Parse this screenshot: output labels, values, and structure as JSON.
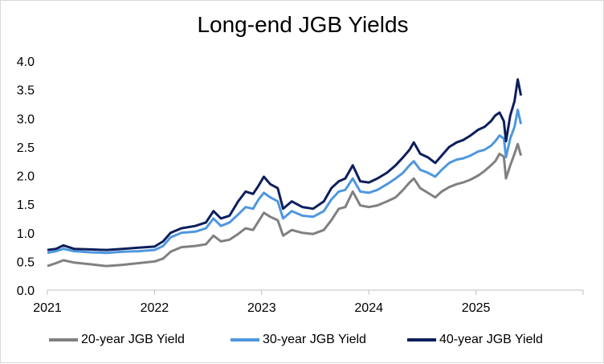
{
  "chart_data": {
    "type": "line",
    "title": "Long-end JGB Yields",
    "xlabel": "",
    "ylabel": "",
    "xlim": [
      2021.0,
      2026.0
    ],
    "ylim": [
      0.0,
      4.0
    ],
    "y_ticks": [
      "0.0",
      "0.5",
      "1.0",
      "1.5",
      "2.0",
      "2.5",
      "3.0",
      "3.5",
      "4.0"
    ],
    "x_ticks": [
      "2021",
      "2022",
      "2023",
      "2024",
      "2025"
    ],
    "legend_position": "bottom",
    "series": [
      {
        "name": "20-year JGB Yield",
        "color": "#808080",
        "points": [
          [
            2021.0,
            0.42
          ],
          [
            2021.08,
            0.47
          ],
          [
            2021.15,
            0.52
          ],
          [
            2021.25,
            0.48
          ],
          [
            2021.4,
            0.45
          ],
          [
            2021.55,
            0.42
          ],
          [
            2021.7,
            0.44
          ],
          [
            2021.85,
            0.47
          ],
          [
            2022.0,
            0.5
          ],
          [
            2022.08,
            0.55
          ],
          [
            2022.15,
            0.67
          ],
          [
            2022.25,
            0.75
          ],
          [
            2022.38,
            0.77
          ],
          [
            2022.48,
            0.8
          ],
          [
            2022.55,
            0.95
          ],
          [
            2022.62,
            0.85
          ],
          [
            2022.7,
            0.88
          ],
          [
            2022.78,
            0.98
          ],
          [
            2022.85,
            1.08
          ],
          [
            2022.92,
            1.05
          ],
          [
            2022.97,
            1.2
          ],
          [
            2023.02,
            1.35
          ],
          [
            2023.08,
            1.28
          ],
          [
            2023.15,
            1.22
          ],
          [
            2023.2,
            0.95
          ],
          [
            2023.28,
            1.05
          ],
          [
            2023.38,
            1.0
          ],
          [
            2023.48,
            0.98
          ],
          [
            2023.58,
            1.05
          ],
          [
            2023.65,
            1.22
          ],
          [
            2023.72,
            1.42
          ],
          [
            2023.78,
            1.45
          ],
          [
            2023.85,
            1.72
          ],
          [
            2023.92,
            1.48
          ],
          [
            2024.0,
            1.45
          ],
          [
            2024.08,
            1.48
          ],
          [
            2024.17,
            1.55
          ],
          [
            2024.25,
            1.62
          ],
          [
            2024.32,
            1.75
          ],
          [
            2024.38,
            1.88
          ],
          [
            2024.42,
            1.95
          ],
          [
            2024.48,
            1.78
          ],
          [
            2024.55,
            1.7
          ],
          [
            2024.62,
            1.62
          ],
          [
            2024.68,
            1.72
          ],
          [
            2024.75,
            1.8
          ],
          [
            2024.82,
            1.85
          ],
          [
            2024.88,
            1.88
          ],
          [
            2024.95,
            1.93
          ],
          [
            2025.02,
            2.0
          ],
          [
            2025.08,
            2.08
          ],
          [
            2025.14,
            2.18
          ],
          [
            2025.18,
            2.25
          ],
          [
            2025.22,
            2.38
          ],
          [
            2025.26,
            2.33
          ],
          [
            2025.28,
            1.95
          ],
          [
            2025.32,
            2.18
          ],
          [
            2025.36,
            2.38
          ],
          [
            2025.39,
            2.55
          ],
          [
            2025.42,
            2.35
          ]
        ]
      },
      {
        "name": "30-year JGB Yield",
        "color": "#4f97de",
        "points": [
          [
            2021.0,
            0.65
          ],
          [
            2021.08,
            0.68
          ],
          [
            2021.15,
            0.72
          ],
          [
            2021.25,
            0.68
          ],
          [
            2021.4,
            0.66
          ],
          [
            2021.55,
            0.65
          ],
          [
            2021.7,
            0.67
          ],
          [
            2021.85,
            0.68
          ],
          [
            2022.0,
            0.7
          ],
          [
            2022.08,
            0.77
          ],
          [
            2022.15,
            0.92
          ],
          [
            2022.25,
            1.0
          ],
          [
            2022.38,
            1.02
          ],
          [
            2022.48,
            1.08
          ],
          [
            2022.55,
            1.25
          ],
          [
            2022.62,
            1.12
          ],
          [
            2022.7,
            1.18
          ],
          [
            2022.78,
            1.32
          ],
          [
            2022.85,
            1.45
          ],
          [
            2022.92,
            1.42
          ],
          [
            2022.97,
            1.58
          ],
          [
            2023.02,
            1.7
          ],
          [
            2023.08,
            1.62
          ],
          [
            2023.15,
            1.55
          ],
          [
            2023.2,
            1.25
          ],
          [
            2023.28,
            1.38
          ],
          [
            2023.38,
            1.3
          ],
          [
            2023.48,
            1.28
          ],
          [
            2023.58,
            1.38
          ],
          [
            2023.65,
            1.58
          ],
          [
            2023.72,
            1.72
          ],
          [
            2023.78,
            1.75
          ],
          [
            2023.85,
            1.95
          ],
          [
            2023.92,
            1.72
          ],
          [
            2024.0,
            1.7
          ],
          [
            2024.08,
            1.75
          ],
          [
            2024.17,
            1.85
          ],
          [
            2024.25,
            1.95
          ],
          [
            2024.32,
            2.05
          ],
          [
            2024.38,
            2.18
          ],
          [
            2024.42,
            2.25
          ],
          [
            2024.48,
            2.1
          ],
          [
            2024.55,
            2.05
          ],
          [
            2024.62,
            1.98
          ],
          [
            2024.68,
            2.1
          ],
          [
            2024.75,
            2.22
          ],
          [
            2024.82,
            2.28
          ],
          [
            2024.88,
            2.3
          ],
          [
            2024.95,
            2.35
          ],
          [
            2025.02,
            2.42
          ],
          [
            2025.08,
            2.45
          ],
          [
            2025.14,
            2.52
          ],
          [
            2025.18,
            2.6
          ],
          [
            2025.22,
            2.7
          ],
          [
            2025.26,
            2.65
          ],
          [
            2025.28,
            2.32
          ],
          [
            2025.32,
            2.65
          ],
          [
            2025.36,
            2.85
          ],
          [
            2025.39,
            3.15
          ],
          [
            2025.42,
            2.9
          ]
        ]
      },
      {
        "name": "40-year JGB Yield",
        "color": "#0c1f5c",
        "points": [
          [
            2021.0,
            0.7
          ],
          [
            2021.08,
            0.72
          ],
          [
            2021.15,
            0.78
          ],
          [
            2021.25,
            0.72
          ],
          [
            2021.4,
            0.71
          ],
          [
            2021.55,
            0.7
          ],
          [
            2021.7,
            0.72
          ],
          [
            2021.85,
            0.74
          ],
          [
            2022.0,
            0.76
          ],
          [
            2022.08,
            0.85
          ],
          [
            2022.15,
            1.0
          ],
          [
            2022.25,
            1.08
          ],
          [
            2022.38,
            1.12
          ],
          [
            2022.48,
            1.18
          ],
          [
            2022.55,
            1.38
          ],
          [
            2022.62,
            1.25
          ],
          [
            2022.7,
            1.3
          ],
          [
            2022.78,
            1.55
          ],
          [
            2022.85,
            1.72
          ],
          [
            2022.92,
            1.68
          ],
          [
            2022.97,
            1.82
          ],
          [
            2023.02,
            1.98
          ],
          [
            2023.08,
            1.85
          ],
          [
            2023.15,
            1.78
          ],
          [
            2023.2,
            1.42
          ],
          [
            2023.28,
            1.55
          ],
          [
            2023.38,
            1.45
          ],
          [
            2023.48,
            1.42
          ],
          [
            2023.58,
            1.55
          ],
          [
            2023.65,
            1.78
          ],
          [
            2023.72,
            1.9
          ],
          [
            2023.78,
            1.95
          ],
          [
            2023.85,
            2.18
          ],
          [
            2023.92,
            1.9
          ],
          [
            2024.0,
            1.88
          ],
          [
            2024.08,
            1.95
          ],
          [
            2024.17,
            2.05
          ],
          [
            2024.25,
            2.18
          ],
          [
            2024.32,
            2.32
          ],
          [
            2024.38,
            2.45
          ],
          [
            2024.42,
            2.58
          ],
          [
            2024.48,
            2.38
          ],
          [
            2024.55,
            2.32
          ],
          [
            2024.62,
            2.22
          ],
          [
            2024.68,
            2.35
          ],
          [
            2024.75,
            2.5
          ],
          [
            2024.82,
            2.58
          ],
          [
            2024.88,
            2.62
          ],
          [
            2024.95,
            2.7
          ],
          [
            2025.02,
            2.8
          ],
          [
            2025.08,
            2.85
          ],
          [
            2025.14,
            2.95
          ],
          [
            2025.18,
            3.05
          ],
          [
            2025.22,
            3.1
          ],
          [
            2025.26,
            2.95
          ],
          [
            2025.28,
            2.6
          ],
          [
            2025.32,
            3.05
          ],
          [
            2025.36,
            3.3
          ],
          [
            2025.39,
            3.68
          ],
          [
            2025.42,
            3.4
          ]
        ]
      }
    ]
  }
}
